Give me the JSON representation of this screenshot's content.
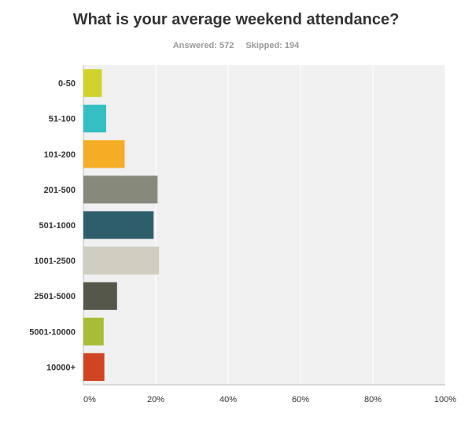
{
  "header": {
    "title": "What is your average weekend attendance?",
    "answered": "Answered: 572",
    "skipped": "Skipped: 194"
  },
  "chart_data": {
    "type": "bar",
    "orientation": "horizontal",
    "title": "What is your average weekend attendance?",
    "categories": [
      "0-50",
      "51-100",
      "101-200",
      "201-500",
      "501-1000",
      "1001-2500",
      "2501-5000",
      "5001-10000",
      "10000+"
    ],
    "values": [
      5.1,
      6.3,
      11.4,
      20.5,
      19.4,
      20.9,
      9.3,
      5.6,
      5.8
    ],
    "colors": [
      "#d1d22b",
      "#35bfc2",
      "#f5ad25",
      "#878a7b",
      "#2e5e6b",
      "#cfcdc0",
      "#55574a",
      "#a8bd35",
      "#cf4421"
    ],
    "xlim": [
      0,
      100
    ],
    "xticks": [
      "0%",
      "20%",
      "40%",
      "60%",
      "80%",
      "100%"
    ],
    "xtick_values": [
      0,
      20,
      40,
      60,
      80,
      100
    ],
    "grid": true,
    "plot_background": "#f0f0f0"
  }
}
